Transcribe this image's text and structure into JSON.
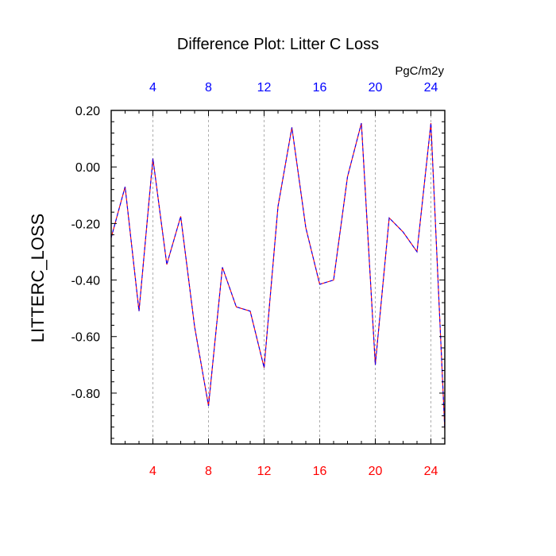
{
  "chart_data": {
    "type": "line",
    "title": "Difference Plot: Litter C Loss",
    "xlabel": "",
    "ylabel": "LITTERC_LOSS",
    "units": "PgC/m2y",
    "xlim": [
      1,
      25
    ],
    "ylim": [
      -0.98,
      0.2
    ],
    "x_ticks": [
      4,
      8,
      12,
      16,
      20,
      24
    ],
    "y_ticks": [
      0.2,
      0.0,
      -0.2,
      -0.4,
      -0.6,
      -0.8
    ],
    "y_tick_labels": [
      "0.20",
      "0.00",
      "-0.20",
      "-0.40",
      "-0.60",
      "-0.80"
    ],
    "grid": "vertical dashed at x ticks",
    "series": [
      {
        "name": "LITTERC_LOSS difference",
        "color": "#0000ff",
        "overlay_color": "#ff0000",
        "line_style": "dashed",
        "x": [
          1,
          2,
          3,
          4,
          5,
          6,
          7,
          8,
          9,
          10,
          11,
          12,
          13,
          14,
          15,
          16,
          17,
          18,
          19,
          20,
          21,
          22,
          23,
          24,
          25
        ],
        "values": [
          -0.25,
          -0.07,
          -0.51,
          0.03,
          -0.345,
          -0.175,
          -0.565,
          -0.845,
          -0.355,
          -0.495,
          -0.51,
          -0.71,
          -0.14,
          0.14,
          -0.215,
          -0.415,
          -0.4,
          -0.035,
          0.155,
          -0.7,
          -0.18,
          -0.23,
          -0.3,
          0.155,
          -0.93
        ]
      }
    ],
    "colors": {
      "bottom_tick_labels": "#ff0000",
      "top_tick_labels": "#0000ff",
      "grid": "#999999",
      "axes": "#000000"
    }
  }
}
